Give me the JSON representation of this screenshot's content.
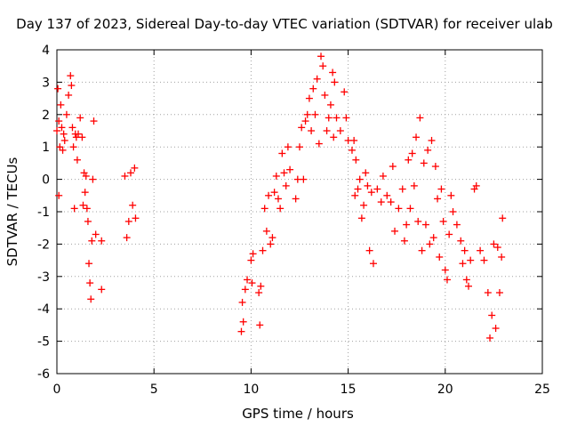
{
  "chart_data": {
    "type": "scatter",
    "title": "Day 137 of 2023, Sidereal Day-to-day VTEC variation (SDTVAR) for receiver ulab",
    "xlabel": "GPS time / hours",
    "ylabel": "SDTVAR / TECUs",
    "xlim": [
      0,
      25
    ],
    "ylim": [
      -6,
      4
    ],
    "xticks": [
      0,
      5,
      10,
      15,
      20,
      25
    ],
    "yticks": [
      -6,
      -5,
      -4,
      -3,
      -2,
      -1,
      0,
      1,
      2,
      3,
      4
    ],
    "grid": true,
    "marker": "+",
    "color": "#ff0000",
    "series": [
      {
        "name": "SDTVAR",
        "points": [
          [
            0.0,
            1.5
          ],
          [
            0.05,
            2.8
          ],
          [
            0.1,
            1.8
          ],
          [
            0.1,
            -0.5
          ],
          [
            0.15,
            1.0
          ],
          [
            0.2,
            2.3
          ],
          [
            0.25,
            1.6
          ],
          [
            0.3,
            0.9
          ],
          [
            0.35,
            1.4
          ],
          [
            0.4,
            1.2
          ],
          [
            0.5,
            2.0
          ],
          [
            0.6,
            2.6
          ],
          [
            0.7,
            3.2
          ],
          [
            0.75,
            2.9
          ],
          [
            0.8,
            1.6
          ],
          [
            0.85,
            1.0
          ],
          [
            0.9,
            -0.9
          ],
          [
            0.95,
            1.4
          ],
          [
            1.0,
            1.3
          ],
          [
            1.05,
            0.6
          ],
          [
            1.1,
            1.4
          ],
          [
            1.2,
            1.9
          ],
          [
            1.3,
            1.3
          ],
          [
            1.35,
            -0.8
          ],
          [
            1.4,
            0.2
          ],
          [
            1.45,
            -0.4
          ],
          [
            1.5,
            0.1
          ],
          [
            1.55,
            -0.9
          ],
          [
            1.6,
            -1.3
          ],
          [
            1.65,
            -2.6
          ],
          [
            1.7,
            -3.2
          ],
          [
            1.75,
            -3.7
          ],
          [
            1.8,
            -1.9
          ],
          [
            1.85,
            0.0
          ],
          [
            1.9,
            1.8
          ],
          [
            2.0,
            -1.7
          ],
          [
            2.3,
            -1.9
          ],
          [
            2.3,
            -3.4
          ],
          [
            3.5,
            0.1
          ],
          [
            3.6,
            -1.8
          ],
          [
            3.7,
            -1.3
          ],
          [
            3.8,
            0.2
          ],
          [
            3.9,
            -0.8
          ],
          [
            4.0,
            0.35
          ],
          [
            4.05,
            -1.2
          ],
          [
            9.5,
            -4.7
          ],
          [
            9.55,
            -3.8
          ],
          [
            9.6,
            -4.4
          ],
          [
            9.7,
            -3.4
          ],
          [
            9.8,
            -3.1
          ],
          [
            10.0,
            -2.5
          ],
          [
            10.05,
            -3.2
          ],
          [
            10.1,
            -2.3
          ],
          [
            10.4,
            -3.5
          ],
          [
            10.45,
            -4.5
          ],
          [
            10.5,
            -3.3
          ],
          [
            10.6,
            -2.2
          ],
          [
            10.7,
            -0.9
          ],
          [
            10.8,
            -1.6
          ],
          [
            10.9,
            -0.5
          ],
          [
            11.0,
            -2.0
          ],
          [
            11.1,
            -1.8
          ],
          [
            11.2,
            -0.4
          ],
          [
            11.3,
            0.1
          ],
          [
            11.4,
            -0.6
          ],
          [
            11.5,
            -0.9
          ],
          [
            11.6,
            0.8
          ],
          [
            11.7,
            0.2
          ],
          [
            11.8,
            -0.2
          ],
          [
            11.9,
            1.0
          ],
          [
            12.0,
            0.3
          ],
          [
            12.3,
            -0.6
          ],
          [
            12.4,
            0.0
          ],
          [
            12.5,
            1.0
          ],
          [
            12.6,
            1.6
          ],
          [
            12.7,
            0.0
          ],
          [
            12.8,
            1.8
          ],
          [
            12.9,
            2.0
          ],
          [
            13.0,
            2.5
          ],
          [
            13.1,
            1.5
          ],
          [
            13.2,
            2.8
          ],
          [
            13.3,
            2.0
          ],
          [
            13.4,
            3.1
          ],
          [
            13.5,
            1.1
          ],
          [
            13.6,
            3.8
          ],
          [
            13.7,
            3.5
          ],
          [
            13.8,
            2.6
          ],
          [
            13.9,
            1.5
          ],
          [
            14.0,
            1.9
          ],
          [
            14.1,
            2.3
          ],
          [
            14.2,
            3.3
          ],
          [
            14.25,
            1.3
          ],
          [
            14.3,
            3.0
          ],
          [
            14.4,
            1.9
          ],
          [
            14.6,
            1.5
          ],
          [
            14.8,
            2.7
          ],
          [
            14.9,
            1.9
          ],
          [
            15.0,
            1.2
          ],
          [
            15.2,
            0.9
          ],
          [
            15.3,
            1.2
          ],
          [
            15.35,
            -0.5
          ],
          [
            15.4,
            0.6
          ],
          [
            15.5,
            -0.3
          ],
          [
            15.6,
            0.0
          ],
          [
            15.7,
            -1.2
          ],
          [
            15.8,
            -0.8
          ],
          [
            15.9,
            0.2
          ],
          [
            16.0,
            -0.2
          ],
          [
            16.1,
            -2.2
          ],
          [
            16.2,
            -0.4
          ],
          [
            16.3,
            -2.6
          ],
          [
            16.5,
            -0.3
          ],
          [
            16.7,
            -0.7
          ],
          [
            16.8,
            0.1
          ],
          [
            17.0,
            -0.5
          ],
          [
            17.2,
            -0.7
          ],
          [
            17.3,
            0.4
          ],
          [
            17.4,
            -1.6
          ],
          [
            17.6,
            -0.9
          ],
          [
            17.8,
            -0.3
          ],
          [
            17.9,
            -1.9
          ],
          [
            18.0,
            -1.4
          ],
          [
            18.1,
            0.6
          ],
          [
            18.2,
            -0.9
          ],
          [
            18.3,
            0.8
          ],
          [
            18.4,
            -0.2
          ],
          [
            18.5,
            1.3
          ],
          [
            18.6,
            -1.3
          ],
          [
            18.7,
            1.9
          ],
          [
            18.8,
            -2.2
          ],
          [
            18.9,
            0.5
          ],
          [
            19.0,
            -1.4
          ],
          [
            19.1,
            0.9
          ],
          [
            19.2,
            -2.0
          ],
          [
            19.3,
            1.2
          ],
          [
            19.4,
            -1.8
          ],
          [
            19.5,
            0.4
          ],
          [
            19.6,
            -0.6
          ],
          [
            19.7,
            -2.4
          ],
          [
            19.8,
            -0.3
          ],
          [
            19.9,
            -1.3
          ],
          [
            20.0,
            -2.8
          ],
          [
            20.1,
            -3.1
          ],
          [
            20.2,
            -1.7
          ],
          [
            20.3,
            -0.5
          ],
          [
            20.4,
            -1.0
          ],
          [
            20.6,
            -1.4
          ],
          [
            20.8,
            -1.9
          ],
          [
            20.9,
            -2.6
          ],
          [
            21.0,
            -2.2
          ],
          [
            21.1,
            -3.1
          ],
          [
            21.2,
            -3.3
          ],
          [
            21.3,
            -2.5
          ],
          [
            21.5,
            -0.3
          ],
          [
            21.6,
            -0.2
          ],
          [
            21.8,
            -2.2
          ],
          [
            22.0,
            -2.5
          ],
          [
            22.2,
            -3.5
          ],
          [
            22.3,
            -4.9
          ],
          [
            22.4,
            -4.2
          ],
          [
            22.5,
            -2.0
          ],
          [
            22.6,
            -4.6
          ],
          [
            22.7,
            -2.1
          ],
          [
            22.8,
            -3.5
          ],
          [
            22.9,
            -2.4
          ],
          [
            22.95,
            -1.2
          ]
        ]
      }
    ]
  }
}
